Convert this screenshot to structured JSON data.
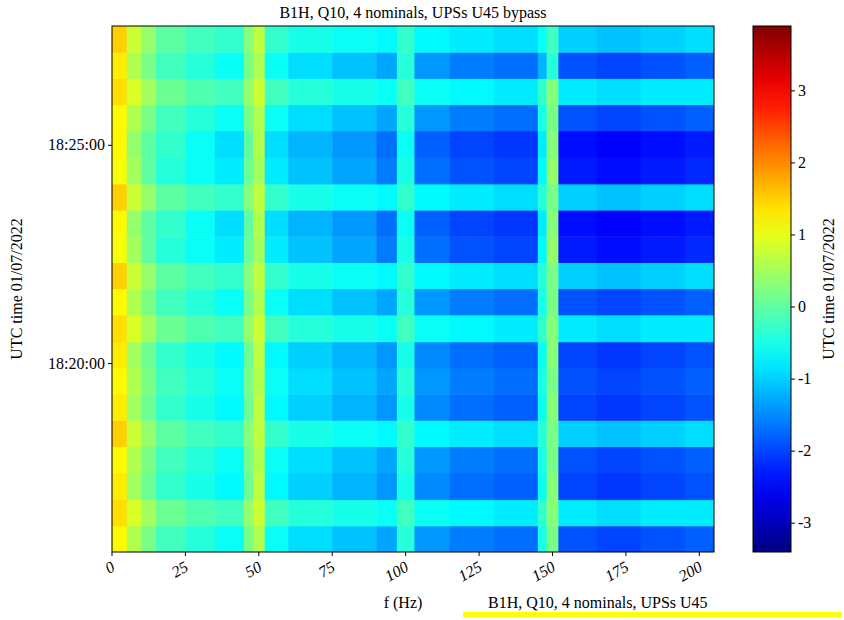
{
  "chart_data": {
    "type": "heatmap",
    "title": "B1H, Q10, 4 nominals, UPSs U45 bypass",
    "x_label": "f (Hz)",
    "y_label": "UTC time 01/07/2022",
    "xlim": [
      0,
      205
    ],
    "xticks": [
      0,
      25,
      50,
      75,
      100,
      125,
      150,
      175,
      200
    ],
    "ylim": [
      65741,
      66464
    ],
    "yticks": [
      {
        "value": 66000,
        "label": "18:20:00"
      },
      {
        "value": 66300,
        "label": "18:25:00"
      }
    ],
    "x_edges": [
      0,
      5,
      10,
      15,
      25,
      35,
      45,
      48,
      52,
      60,
      75,
      90,
      97,
      103,
      115,
      130,
      145,
      148,
      152,
      165,
      180,
      195,
      205
    ],
    "y_edges": [
      65741,
      65777,
      65813,
      65850,
      65886,
      65922,
      65958,
      65994,
      66030,
      66067,
      66103,
      66139,
      66175,
      66211,
      66247,
      66284,
      66320,
      66356,
      66392,
      66428,
      66464
    ],
    "cells": [
      [
        1.2,
        0.6,
        0.2,
        -0.2,
        -0.4,
        -0.6,
        0.2,
        0.6,
        -0.6,
        -0.9,
        -1.1,
        -1.3,
        -0.4,
        -1.4,
        -1.6,
        -1.7,
        -0.5,
        0.2,
        -1.9,
        -2.0,
        -1.9,
        -1.8
      ],
      [
        1.4,
        0.9,
        0.5,
        0.1,
        -0.1,
        -0.2,
        0.4,
        0.8,
        -0.2,
        -0.4,
        -0.5,
        -0.6,
        -0.2,
        -0.6,
        -0.7,
        -0.8,
        -0.3,
        0.3,
        -0.8,
        -0.9,
        -0.8,
        -0.8
      ],
      [
        1.3,
        0.5,
        0.1,
        -0.3,
        -0.5,
        -0.7,
        0.1,
        0.7,
        -0.7,
        -1.0,
        -1.2,
        -1.4,
        -0.5,
        -1.5,
        -1.7,
        -1.8,
        -0.6,
        0.3,
        -2.0,
        -2.1,
        -2.0,
        -1.9
      ],
      [
        1.2,
        0.6,
        0.2,
        -0.2,
        -0.4,
        -0.6,
        0.2,
        0.6,
        -0.6,
        -0.9,
        -1.1,
        -1.3,
        -0.4,
        -1.4,
        -1.6,
        -1.7,
        -0.5,
        0.2,
        -1.9,
        -2.0,
        -1.9,
        -1.8
      ],
      [
        1.5,
        0.8,
        0.4,
        0.0,
        -0.2,
        -0.3,
        0.3,
        0.7,
        -0.3,
        -0.5,
        -0.6,
        -0.7,
        -0.3,
        -0.7,
        -0.8,
        -0.9,
        -0.4,
        0.2,
        -1.0,
        -1.1,
        -1.0,
        -0.9
      ],
      [
        1.3,
        0.5,
        0.1,
        -0.3,
        -0.5,
        -0.7,
        0.1,
        0.7,
        -0.7,
        -1.0,
        -1.2,
        -1.4,
        -0.5,
        -1.5,
        -1.7,
        -1.8,
        -0.6,
        0.3,
        -2.0,
        -2.1,
        -2.0,
        -1.9
      ],
      [
        1.2,
        0.6,
        0.2,
        -0.2,
        -0.4,
        -0.6,
        0.2,
        0.6,
        -0.6,
        -0.9,
        -1.1,
        -1.3,
        -0.4,
        -1.4,
        -1.6,
        -1.7,
        -0.5,
        0.2,
        -1.9,
        -2.0,
        -1.9,
        -1.8
      ],
      [
        1.3,
        0.5,
        0.1,
        -0.3,
        -0.5,
        -0.7,
        0.1,
        0.7,
        -0.7,
        -1.0,
        -1.2,
        -1.4,
        -0.5,
        -1.5,
        -1.7,
        -1.8,
        -0.6,
        0.3,
        -2.0,
        -2.1,
        -2.0,
        -1.9
      ],
      [
        1.4,
        0.9,
        0.5,
        0.1,
        -0.1,
        -0.2,
        0.4,
        0.8,
        -0.2,
        -0.4,
        -0.5,
        -0.6,
        -0.2,
        -0.6,
        -0.7,
        -0.8,
        -0.3,
        0.3,
        -0.8,
        -0.9,
        -0.8,
        -0.8
      ],
      [
        1.2,
        0.6,
        0.2,
        -0.2,
        -0.4,
        -0.6,
        0.2,
        0.6,
        -0.6,
        -0.9,
        -1.1,
        -1.3,
        -0.4,
        -1.4,
        -1.6,
        -1.7,
        -0.5,
        0.2,
        -1.9,
        -2.0,
        -1.9,
        -1.8
      ],
      [
        1.5,
        0.8,
        0.4,
        0.0,
        -0.2,
        -0.3,
        0.3,
        0.7,
        -0.3,
        -0.5,
        -0.6,
        -0.7,
        -0.3,
        -0.7,
        -0.8,
        -0.9,
        -0.4,
        0.2,
        -1.0,
        -1.1,
        -1.0,
        -0.9
      ],
      [
        1.1,
        0.5,
        0.0,
        -0.4,
        -0.6,
        -0.8,
        0.1,
        0.5,
        -0.8,
        -1.1,
        -1.3,
        -1.6,
        -0.5,
        -1.7,
        -1.9,
        -2.0,
        -0.7,
        0.4,
        -2.3,
        -2.4,
        -2.3,
        -2.2
      ],
      [
        1.2,
        0.4,
        0.0,
        -0.3,
        -0.6,
        -0.9,
        0.0,
        0.6,
        -0.9,
        -1.2,
        -1.4,
        -1.7,
        -0.6,
        -1.8,
        -2.0,
        -2.1,
        -0.8,
        0.3,
        -2.4,
        -2.5,
        -2.4,
        -2.3
      ],
      [
        1.5,
        0.8,
        0.4,
        0.0,
        -0.2,
        -0.3,
        0.3,
        0.7,
        -0.3,
        -0.5,
        -0.6,
        -0.7,
        -0.3,
        -0.7,
        -0.8,
        -0.9,
        -0.4,
        0.2,
        -1.0,
        -1.1,
        -1.0,
        -0.9
      ],
      [
        1.1,
        0.5,
        0.0,
        -0.4,
        -0.6,
        -0.8,
        0.1,
        0.5,
        -0.8,
        -1.1,
        -1.3,
        -1.6,
        -0.5,
        -1.7,
        -1.9,
        -2.0,
        -0.7,
        0.4,
        -2.3,
        -2.4,
        -2.3,
        -2.2
      ],
      [
        1.2,
        0.4,
        0.0,
        -0.3,
        -0.6,
        -0.9,
        0.0,
        0.6,
        -0.9,
        -1.2,
        -1.4,
        -1.7,
        -0.6,
        -1.8,
        -2.0,
        -2.1,
        -0.8,
        0.3,
        -2.4,
        -2.5,
        -2.4,
        -2.3
      ],
      [
        1.2,
        0.6,
        0.2,
        -0.2,
        -0.4,
        -0.6,
        0.2,
        0.6,
        -0.6,
        -0.9,
        -1.1,
        -1.3,
        -0.4,
        -1.4,
        -1.6,
        -1.7,
        -0.5,
        0.2,
        -1.9,
        -2.0,
        -1.9,
        -1.8
      ],
      [
        1.4,
        0.9,
        0.5,
        0.1,
        -0.1,
        -0.2,
        0.4,
        0.8,
        -0.2,
        -0.4,
        -0.5,
        -0.6,
        -0.2,
        -0.6,
        -0.7,
        -0.8,
        -0.3,
        0.3,
        -0.8,
        -0.9,
        -0.8,
        -0.8
      ],
      [
        1.3,
        0.6,
        0.2,
        -0.2,
        -0.4,
        -0.6,
        0.2,
        0.6,
        -0.6,
        -0.9,
        -1.1,
        -1.3,
        -0.4,
        -1.4,
        -1.6,
        -1.7,
        -1.2,
        -0.4,
        -1.9,
        -2.0,
        -1.9,
        -1.8
      ],
      [
        1.5,
        0.8,
        0.4,
        0.0,
        -0.2,
        -0.3,
        0.3,
        0.7,
        -0.3,
        -0.5,
        -0.6,
        -0.7,
        -0.3,
        -0.7,
        -0.8,
        -0.9,
        -0.6,
        -0.2,
        -1.0,
        -1.1,
        -1.0,
        -0.9
      ]
    ],
    "colorbar_label": "UTC time 01/07/2022",
    "colorbar_range": [
      -3.4,
      3.9
    ],
    "colorbar_ticks": [
      -3,
      -2,
      -1,
      0,
      1,
      2,
      3
    ],
    "annotations": [
      "B1H, Q10, 4 nominals, UPSs U45"
    ]
  }
}
